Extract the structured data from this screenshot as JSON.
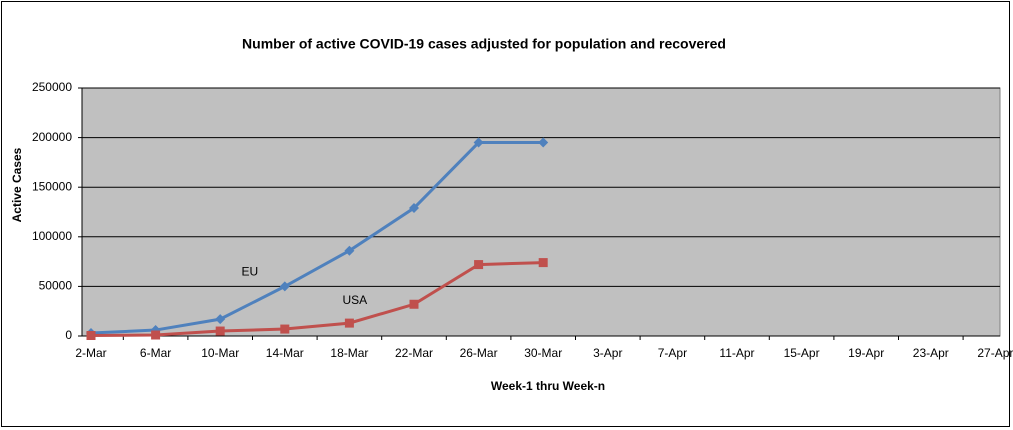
{
  "chart_data": {
    "type": "line",
    "title": "Number of active COVID-19 cases adjusted for population and recovered",
    "x_label": "Week-1 thru Week-n",
    "y_label": "Active Cases",
    "categories": [
      "2-Mar",
      "6-Mar",
      "10-Mar",
      "14-Mar",
      "18-Mar",
      "22-Mar",
      "26-Mar",
      "30-Mar",
      "3-Apr",
      "7-Apr",
      "11-Apr",
      "15-Apr",
      "19-Apr",
      "23-Apr",
      "27-Apr"
    ],
    "series": [
      {
        "name": "EU",
        "color": "#4f81bd",
        "marker": "diamond",
        "values": [
          3000,
          6000,
          17000,
          50000,
          86000,
          129000,
          195000,
          195000,
          null,
          null,
          null,
          null,
          null,
          null,
          null
        ]
      },
      {
        "name": "USA",
        "color": "#c0504d",
        "marker": "square",
        "values": [
          500,
          1000,
          5000,
          7000,
          13000,
          32000,
          72000,
          74000,
          null,
          null,
          null,
          null,
          null,
          null,
          null
        ]
      }
    ],
    "ylim": [
      0,
      250000
    ],
    "yticks": [
      0,
      50000,
      100000,
      150000,
      200000,
      250000
    ],
    "grid": true
  }
}
